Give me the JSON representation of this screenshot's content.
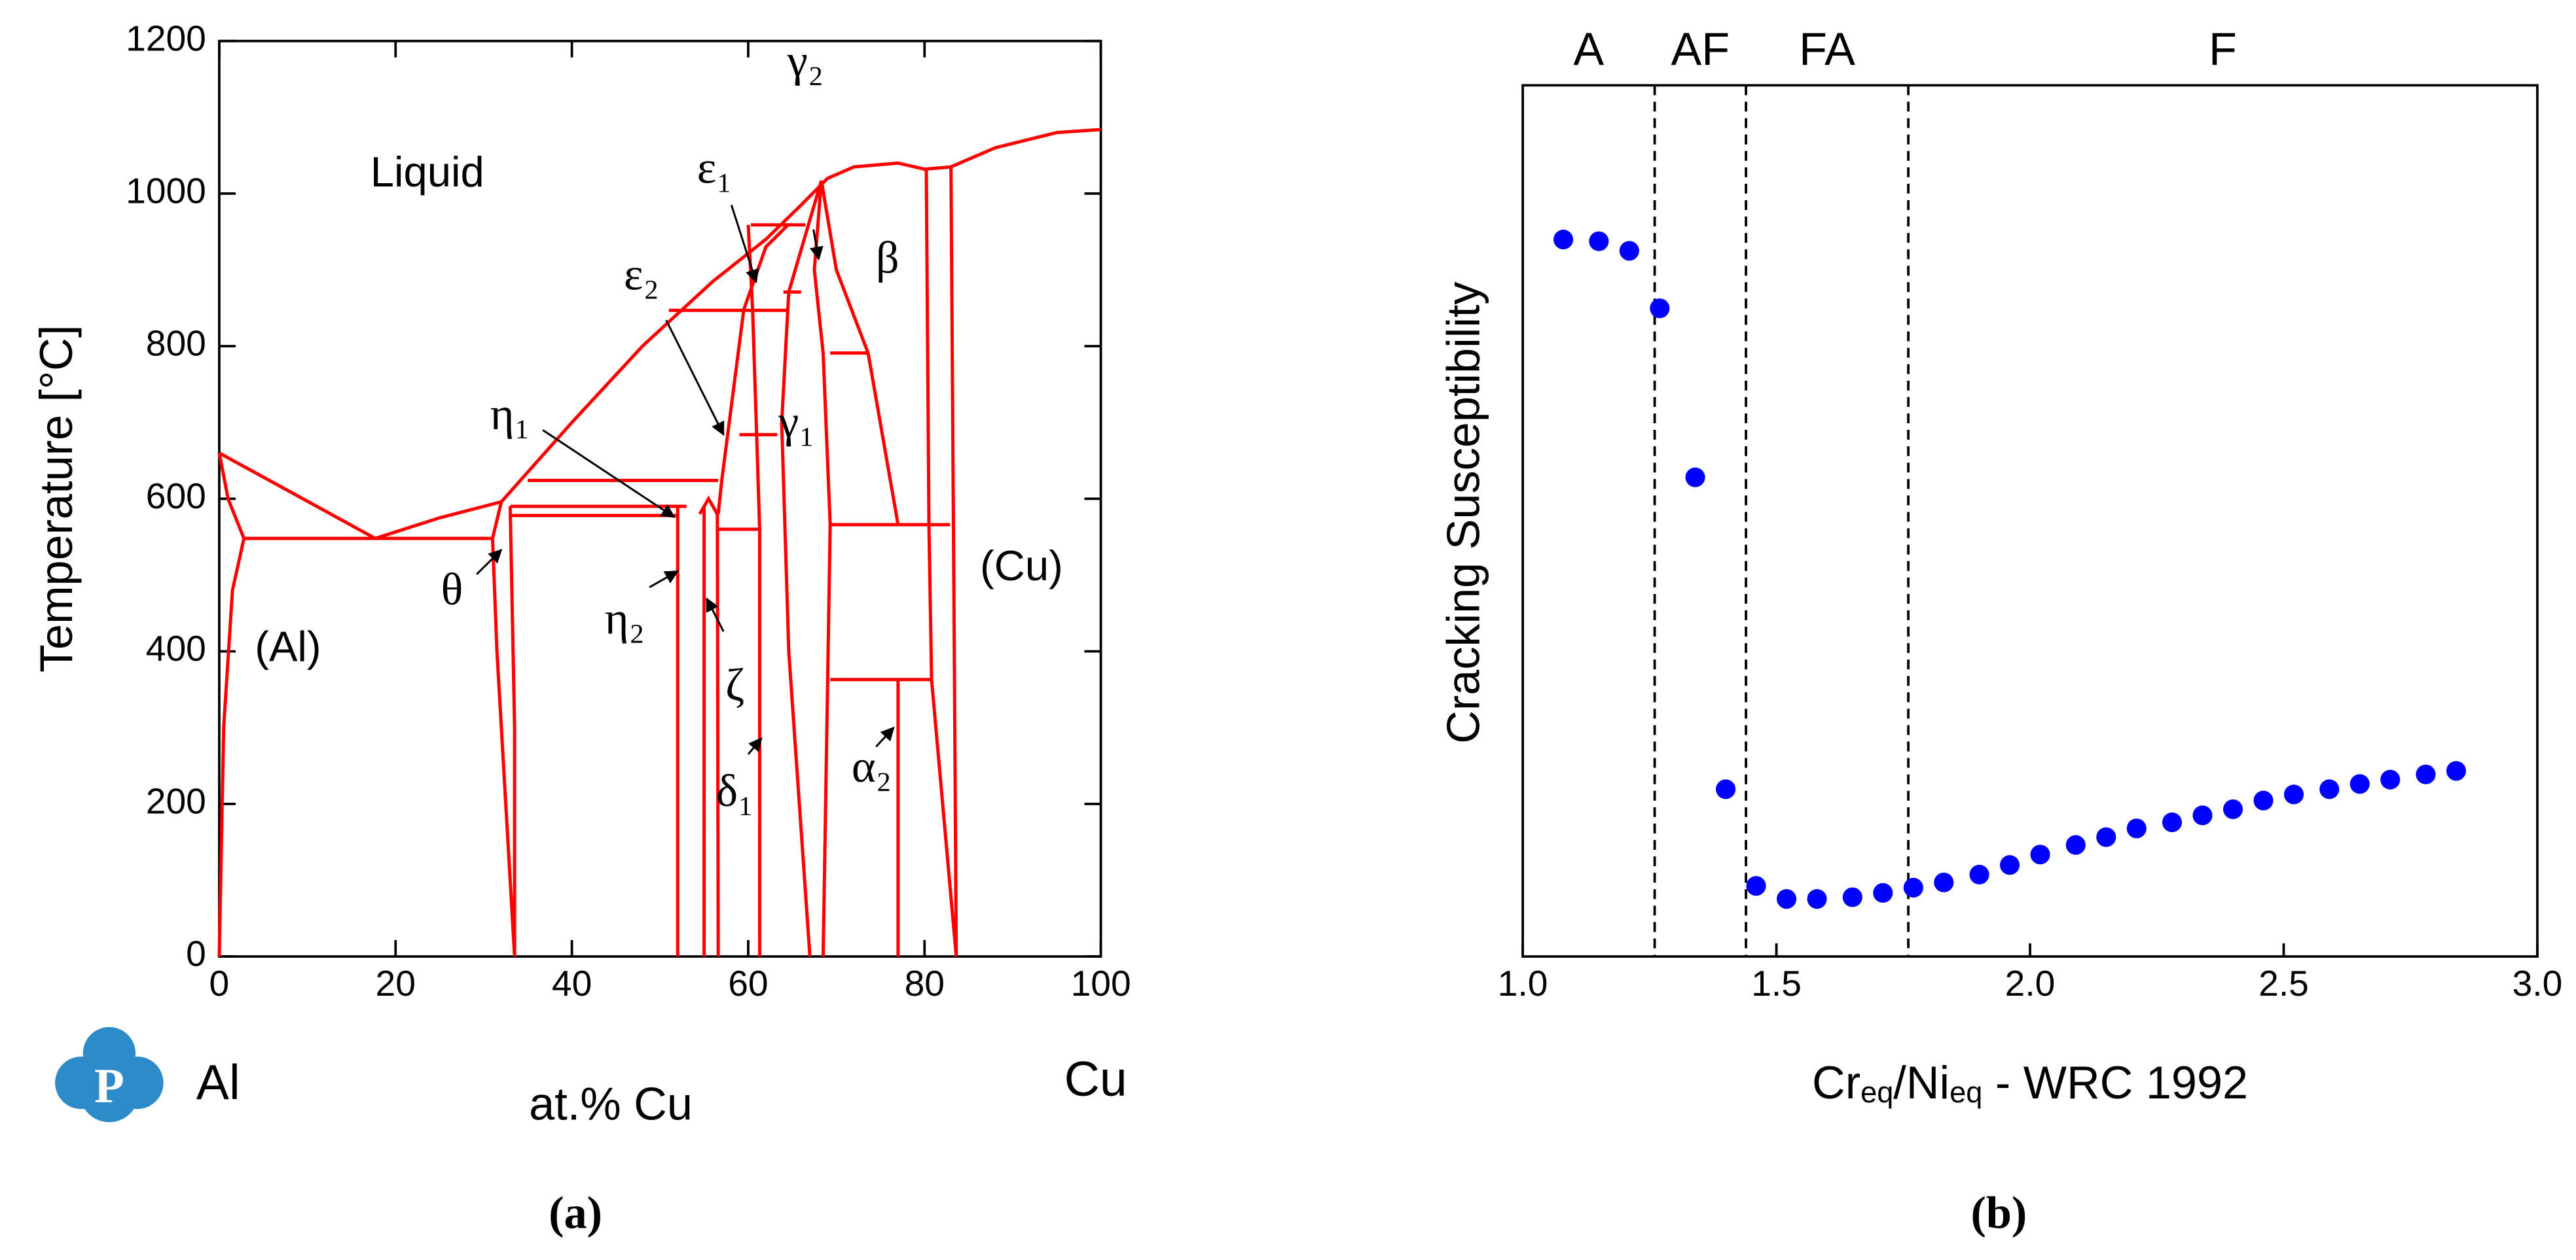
{
  "chart_data": [
    {
      "type": "line",
      "color": "#ff0000",
      "x_label": "at.% Cu",
      "y_label": "Temperature [°C]",
      "caption": "(a)",
      "x_left_label": "Al",
      "x_right_label": "Cu",
      "xlim": [
        0,
        100
      ],
      "ylim": [
        0,
        1200
      ],
      "xticks": [
        0,
        20,
        40,
        60,
        80,
        100
      ],
      "yticks": [
        0,
        200,
        400,
        600,
        800,
        1000,
        1200
      ],
      "series": [
        {
          "x": [
            0,
            17.7,
            25,
            32
          ],
          "values": [
            660,
            548,
            575,
            596
          ]
        },
        {
          "x": [
            32,
            40,
            48,
            56,
            62,
            66,
            69,
            72,
            77,
            80,
            83,
            88,
            95,
            100
          ],
          "values": [
            596,
            700,
            800,
            885,
            940,
            985,
            1020,
            1035,
            1040,
            1032,
            1035,
            1060,
            1080,
            1084
          ]
        },
        {
          "x": [
            0,
            1,
            2.8
          ],
          "values": [
            660,
            600,
            548
          ]
        },
        {
          "x": [
            0,
            0.5,
            1.5,
            2.8
          ],
          "values": [
            0,
            300,
            480,
            548
          ]
        },
        {
          "x": [
            2.8,
            31
          ],
          "values": [
            548,
            548
          ]
        },
        {
          "x": [
            32,
            31,
            31.5,
            33.5
          ],
          "values": [
            596,
            548,
            400,
            0
          ]
        },
        {
          "x": [
            33,
            33.5,
            33.5
          ],
          "values": [
            590,
            300,
            0
          ]
        },
        {
          "x": [
            33,
            53
          ],
          "values": [
            590,
            590
          ]
        },
        {
          "x": [
            33,
            52
          ],
          "values": [
            578,
            578
          ]
        },
        {
          "x": [
            35,
            56.6
          ],
          "values": [
            624,
            624
          ]
        },
        {
          "x": [
            51,
            64.6
          ],
          "values": [
            847,
            847
          ]
        },
        {
          "x": [
            60.3,
            66.5
          ],
          "values": [
            959,
            959
          ]
        },
        {
          "x": [
            64,
            66
          ],
          "values": [
            871,
            871
          ]
        },
        {
          "x": [
            69.3,
            73.6
          ],
          "values": [
            791,
            791
          ]
        },
        {
          "x": [
            69.3,
            82.9
          ],
          "values": [
            566,
            566
          ]
        },
        {
          "x": [
            69.3,
            80.8
          ],
          "values": [
            363,
            363
          ]
        },
        {
          "x": [
            56.6,
            61.3
          ],
          "values": [
            560,
            560
          ]
        },
        {
          "x": [
            59,
            63.3
          ],
          "values": [
            684,
            684
          ]
        },
        {
          "x": [
            52,
            52
          ],
          "values": [
            0,
            590
          ]
        },
        {
          "x": [
            55,
            55
          ],
          "values": [
            0,
            590
          ]
        },
        {
          "x": [
            54.5,
            55.5,
            56.5,
            56.6
          ],
          "values": [
            580,
            600,
            580,
            0
          ]
        },
        {
          "x": [
            61.3,
            61.3,
            60.5,
            60
          ],
          "values": [
            0,
            560,
            848,
            959
          ]
        },
        {
          "x": [
            56.6,
            57,
            59.5,
            62,
            64.6
          ],
          "values": [
            580,
            624,
            848,
            930,
            960
          ]
        },
        {
          "x": [
            67,
            64.6,
            63.8,
            64.6,
            68.3
          ],
          "values": [
            0,
            400,
            700,
            871,
            1017
          ]
        },
        {
          "x": [
            68.3,
            70,
            73.6,
            77
          ],
          "values": [
            1017,
            900,
            791,
            566
          ]
        },
        {
          "x": [
            68.3,
            67.5,
            68.5,
            69.3,
            68.5
          ],
          "values": [
            1017,
            900,
            791,
            566,
            0
          ]
        },
        {
          "x": [
            77,
            77
          ],
          "values": [
            363,
            0
          ]
        },
        {
          "x": [
            83.6,
            80.8,
            80.5,
            80.2
          ],
          "values": [
            0,
            363,
            566,
            1032
          ]
        },
        {
          "x": [
            83,
            83.4,
            83.6
          ],
          "values": [
            1035,
            363,
            0
          ]
        }
      ],
      "annotations": [
        {
          "text": "Liquid",
          "x": 23.6,
          "y": 1024,
          "font": "sans"
        },
        {
          "text": "(Al)",
          "x": 7.8,
          "y": 402,
          "font": "sans"
        },
        {
          "text": "(Cu)",
          "x": 91,
          "y": 508,
          "font": "sans"
        },
        {
          "text": "θ",
          "x": 26.4,
          "y": 475,
          "font": "serif"
        },
        {
          "text": "η₂",
          "x": 46,
          "y": 437,
          "font": "serif"
        },
        {
          "text": "ζ",
          "x": 58.5,
          "y": 350,
          "font": "serif"
        },
        {
          "text": "δ₁",
          "x": 58.5,
          "y": 211,
          "font": "serif"
        },
        {
          "text": "α₂",
          "x": 74,
          "y": 243,
          "font": "serif"
        },
        {
          "text": "γ₁",
          "x": 65.5,
          "y": 695,
          "font": "serif"
        },
        {
          "text": "β",
          "x": 75.8,
          "y": 910,
          "font": "serif"
        },
        {
          "text": "ε₂",
          "x": 47.9,
          "y": 888,
          "font": "serif"
        },
        {
          "text": "η₁",
          "x": 33,
          "y": 705,
          "font": "serif"
        },
        {
          "text": "ε₁",
          "x": 56.2,
          "y": 1028,
          "font": "serif"
        },
        {
          "text": "γ₂",
          "x": 66.5,
          "y": 1168,
          "font": "serif"
        }
      ],
      "arrows": [
        {
          "from": [
            29.2,
            501
          ],
          "to": [
            32,
            533
          ]
        },
        {
          "from": [
            48.8,
            484
          ],
          "to": [
            52,
            505
          ]
        },
        {
          "from": [
            57.2,
            426
          ],
          "to": [
            55.3,
            469
          ]
        },
        {
          "from": [
            60,
            265
          ],
          "to": [
            61.5,
            286
          ]
        },
        {
          "from": [
            74.5,
            275
          ],
          "to": [
            76.5,
            300
          ]
        },
        {
          "from": [
            50.7,
            834
          ],
          "to": [
            57.2,
            684
          ]
        },
        {
          "from": [
            36.7,
            690
          ],
          "to": [
            51.6,
            576
          ]
        },
        {
          "from": [
            58.1,
            985
          ],
          "to": [
            60.9,
            884
          ]
        },
        {
          "from": [
            67.4,
            953
          ],
          "to": [
            68,
            914
          ]
        }
      ]
    },
    {
      "type": "scatter",
      "color": "#0000ff",
      "y_label": "Cracking Susceptibility",
      "caption": "(b)",
      "x_label": [
        {
          "text": "Cr"
        },
        {
          "sub": "eq"
        },
        {
          "text": "/Ni"
        },
        {
          "sub": "eq"
        },
        {
          "text": " - WRC 1992"
        }
      ],
      "xlim": [
        1,
        3
      ],
      "ylim": [
        0,
        100
      ],
      "xticks": [
        {
          "value": 1,
          "label": "1.0"
        },
        1.5,
        {
          "value": 2,
          "label": "2.0"
        },
        2.5,
        {
          "value": 3,
          "label": "3.0"
        }
      ],
      "regions": [
        "A",
        "AF",
        "FA",
        "F"
      ],
      "boundaries": [
        1.26,
        1.44,
        1.76
      ],
      "x": [
        1.08,
        1.15,
        1.21,
        1.27,
        1.34,
        1.4,
        1.46,
        1.52,
        1.58,
        1.65,
        1.71,
        1.77,
        1.83,
        1.9,
        1.96,
        2.02,
        2.09,
        2.15,
        2.21,
        2.28,
        2.34,
        2.4,
        2.46,
        2.52,
        2.59,
        2.65,
        2.71,
        2.78,
        2.84
      ],
      "values": [
        82.3,
        82.1,
        81.0,
        74.4,
        55.0,
        19.2,
        8.1,
        6.6,
        6.6,
        6.8,
        7.3,
        7.9,
        8.5,
        9.4,
        10.5,
        11.7,
        12.8,
        13.7,
        14.7,
        15.4,
        16.2,
        16.9,
        17.9,
        18.6,
        19.2,
        19.8,
        20.3,
        20.9,
        21.3
      ]
    }
  ]
}
